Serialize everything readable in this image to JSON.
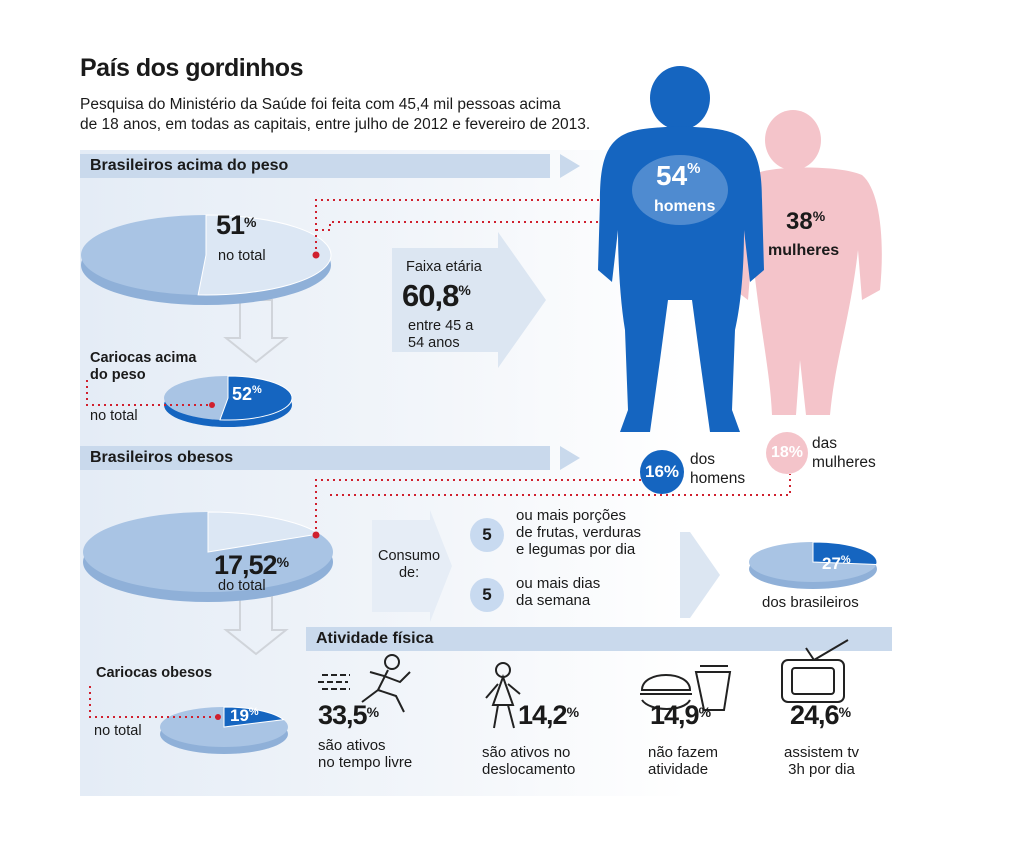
{
  "header": {
    "title": "País dos gordinhos",
    "subtitle_line1": "Pesquisa do Ministério da Saúde foi feita com 45,4 mil pessoas acima",
    "subtitle_line2": "de 18 anos, em todas as capitais, entre julho de 2012 e fevereiro de 2013."
  },
  "colors": {
    "dark_blue": "#1565c0",
    "light_blue": "#c9d9ec",
    "pink": "#f4b7bf",
    "red_dots": "#d0202e"
  },
  "overweight": {
    "band": "Brasileiros acima do peso",
    "total_value": "51",
    "total_label": "no total",
    "rio_label_line1": "Cariocas acima",
    "rio_label_line2": "do peso",
    "rio_value": "52",
    "rio_total_label": "no total",
    "age_label": "Faixa etária",
    "age_value": "60,8",
    "age_desc_line1": "entre 45 a",
    "age_desc_line2": "54 anos",
    "men_value": "54",
    "men_label": "homens",
    "women_value": "38",
    "women_label": "mulheres"
  },
  "obese": {
    "band": "Brasileiros obesos",
    "total_value": "17,52",
    "total_label": "do total",
    "rio_label": "Cariocas obesos",
    "rio_value": "19",
    "rio_total_label": "no total",
    "men_value": "16%",
    "men_label_line1": "dos",
    "men_label_line2": "homens",
    "women_value": "18%",
    "women_label_line1": "das",
    "women_label_line2": "mulheres"
  },
  "consumption": {
    "label_line1": "Consumo",
    "label_line2": "de:",
    "item1_num": "5",
    "item1_line1": "ou mais porções",
    "item1_line2": "de frutas, verduras",
    "item1_line3": "e legumas por dia",
    "item2_num": "5",
    "item2_line1": "ou mais dias",
    "item2_line2": "da semana",
    "result_value": "27",
    "result_label": "dos brasileiros"
  },
  "activity": {
    "band": "Atividade física",
    "items": [
      {
        "value": "33,5",
        "line1": "são ativos",
        "line2": "no tempo livre",
        "icon": "running-person-icon"
      },
      {
        "value": "14,2",
        "line1": "são ativos no",
        "line2": "deslocamento",
        "icon": "walking-girl-icon"
      },
      {
        "value": "14,9",
        "line1": "não fazem",
        "line2": "atividade",
        "icon": "fast-food-icon"
      },
      {
        "value": "24,6",
        "line1": "assistem tv",
        "line2": "3h por dia",
        "icon": "tv-icon"
      }
    ]
  },
  "chart_data": [
    {
      "type": "pie",
      "title": "Brasileiros acima do peso",
      "values": [
        51,
        49
      ],
      "labels": [
        "no total",
        ""
      ]
    },
    {
      "type": "pie",
      "title": "Cariocas acima do peso",
      "values": [
        52,
        48
      ],
      "labels": [
        "no total",
        ""
      ]
    },
    {
      "type": "pie",
      "title": "Brasileiros obesos",
      "values": [
        17.52,
        82.48
      ],
      "labels": [
        "do total",
        ""
      ]
    },
    {
      "type": "pie",
      "title": "Cariocas obesos",
      "values": [
        19,
        81
      ],
      "labels": [
        "no total",
        ""
      ]
    },
    {
      "type": "pie",
      "title": "Consumo",
      "values": [
        27,
        73
      ],
      "labels": [
        "dos brasileiros",
        ""
      ]
    }
  ]
}
